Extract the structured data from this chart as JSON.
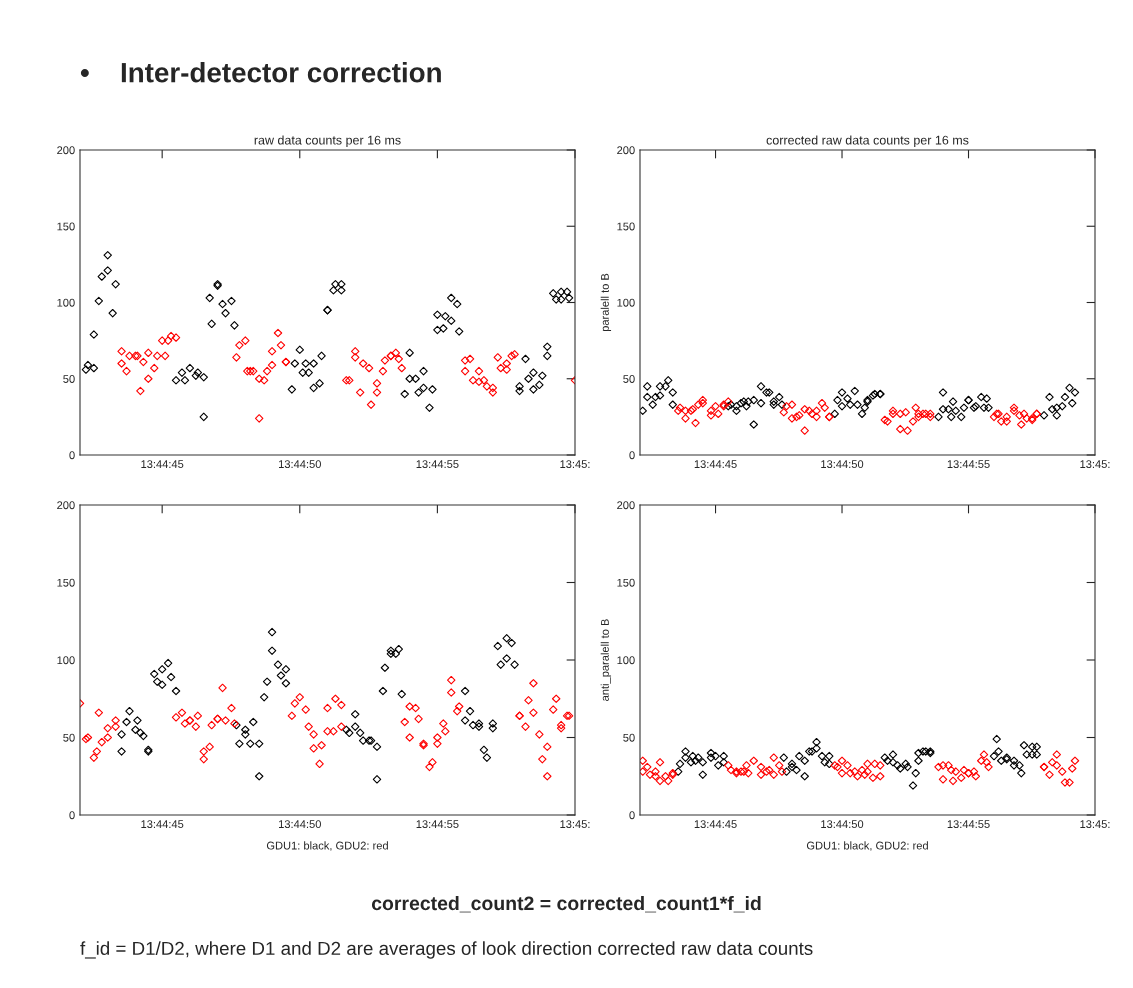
{
  "chart_data": [
    {
      "type": "scatter",
      "title": "raw data counts per 16 ms",
      "annotations": [
        "•",
        "Inter-detector correction"
      ],
      "marker": "diamond",
      "grid": false,
      "legend": false,
      "xlim": [
        13.745,
        13.75
      ],
      "xticks": [
        {
          "value": 13.74583,
          "label": "13:44:45"
        },
        {
          "value": 13.74722,
          "label": "13:44:50"
        },
        {
          "value": 13.74861,
          "label": "13:44:55"
        },
        {
          "value": 13.75,
          "label": "13:45:"
        }
      ],
      "ylim": [
        0,
        200
      ],
      "yticks": [
        0,
        50,
        100,
        150,
        200
      ],
      "series": [
        {
          "color": "#000000",
          "x": [
            13.74506,
            13.74508,
            13.74514,
            13.74514,
            13.74519,
            13.74522,
            13.74528,
            13.74528,
            13.74533,
            13.74536,
            13.74597,
            13.74603,
            13.74606,
            13.74611,
            13.74617,
            13.74619,
            13.74625,
            13.74625,
            13.74631,
            13.74633,
            13.74639,
            13.74639,
            13.74644,
            13.74647,
            13.74653,
            13.74656,
            13.74714,
            13.74717,
            13.74722,
            13.74725,
            13.74728,
            13.74731,
            13.74736,
            13.74736,
            13.74742,
            13.74744,
            13.7475,
            13.7475,
            13.74756,
            13.74758,
            13.74764,
            13.74764,
            13.74828,
            13.74833,
            13.74833,
            13.74839,
            13.74842,
            13.74847,
            13.74847,
            13.74853,
            13.74856,
            13.74861,
            13.74861,
            13.74867,
            13.74869,
            13.74875,
            13.74875,
            13.74881,
            13.74883,
            13.74944,
            13.74944,
            13.7495,
            13.74953,
            13.74958,
            13.74958,
            13.74964,
            13.74967,
            13.74972,
            13.74972,
            13.74978,
            13.74981,
            13.74986,
            13.74986,
            13.74992,
            13.74994
          ],
          "values": [
            56,
            59,
            57,
            79,
            101,
            117,
            121,
            131,
            93,
            112,
            49,
            54,
            49,
            57,
            52,
            54,
            25,
            51,
            103,
            86,
            111,
            112,
            99,
            93,
            101,
            85,
            43,
            60,
            69,
            54,
            60,
            54,
            60,
            44,
            47,
            65,
            95,
            95,
            108,
            112,
            108,
            112,
            40,
            67,
            50,
            50,
            41,
            55,
            44,
            31,
            43,
            82,
            92,
            83,
            91,
            88,
            103,
            99,
            81,
            45,
            42,
            63,
            50,
            54,
            43,
            46,
            52,
            71,
            65,
            106,
            102,
            107,
            102,
            107,
            103
          ]
        },
        {
          "color": "#ff0000",
          "x": [
            13.74542,
            13.74542,
            13.74547,
            13.7455,
            13.74556,
            13.74558,
            13.74561,
            13.74564,
            13.74569,
            13.74569,
            13.74575,
            13.74578,
            13.74583,
            13.74586,
            13.74589,
            13.74592,
            13.74597,
            13.74658,
            13.74661,
            13.74667,
            13.74669,
            13.74672,
            13.74675,
            13.74681,
            13.74681,
            13.74686,
            13.74689,
            13.74694,
            13.74694,
            13.747,
            13.74703,
            13.74708,
            13.74708,
            13.74769,
            13.74772,
            13.74778,
            13.74778,
            13.74783,
            13.74786,
            13.74792,
            13.74794,
            13.748,
            13.748,
            13.74806,
            13.74808,
            13.74814,
            13.74814,
            13.74819,
            13.74822,
            13.74825,
            13.74889,
            13.74889,
            13.74894,
            13.74897,
            13.74903,
            13.74903,
            13.74908,
            13.74911,
            13.74917,
            13.74917,
            13.74922,
            13.74925,
            13.74931,
            13.74931,
            13.74936,
            13.74939,
            13.75
          ],
          "values": [
            60,
            68,
            55,
            65,
            65,
            65,
            42,
            61,
            67,
            50,
            57,
            65,
            75,
            65,
            75,
            78,
            77,
            64,
            72,
            75,
            55,
            55,
            55,
            50,
            24,
            49,
            55,
            68,
            59,
            80,
            72,
            61,
            61,
            49,
            49,
            68,
            64,
            41,
            60,
            57,
            33,
            41,
            47,
            55,
            62,
            65,
            65,
            67,
            63,
            57,
            55,
            62,
            63,
            49,
            55,
            48,
            49,
            45,
            44,
            41,
            64,
            57,
            60,
            56,
            65,
            66,
            49
          ]
        }
      ]
    },
    {
      "type": "scatter",
      "title": "corrected raw data counts per 16 ms",
      "ylabel": "paralell to B",
      "marker": "diamond",
      "grid": false,
      "legend": false,
      "xlim": [
        13.745,
        13.75
      ],
      "xticks": [
        {
          "value": 13.74583,
          "label": "13:44:45"
        },
        {
          "value": 13.74722,
          "label": "13:44:50"
        },
        {
          "value": 13.74861,
          "label": "13:44:55"
        },
        {
          "value": 13.75,
          "label": "13:45:"
        }
      ],
      "ylim": [
        0,
        200
      ],
      "yticks": [
        0,
        50,
        100,
        150,
        200
      ],
      "series": [
        {
          "color": "#000000",
          "x": [
            13.74503,
            13.74508,
            13.74508,
            13.74514,
            13.74517,
            13.74522,
            13.74522,
            13.74528,
            13.74531,
            13.74536,
            13.74536,
            13.74597,
            13.746,
            13.74606,
            13.74606,
            13.74611,
            13.74614,
            13.74617,
            13.74619,
            13.74625,
            13.74625,
            13.74633,
            13.74633,
            13.74639,
            13.74642,
            13.74647,
            13.74647,
            13.74653,
            13.74656,
            13.74714,
            13.74717,
            13.74722,
            13.74722,
            13.74728,
            13.74731,
            13.74736,
            13.74739,
            13.74744,
            13.74747,
            13.7475,
            13.7475,
            13.74756,
            13.74758,
            13.74764,
            13.74764,
            13.74828,
            13.74833,
            13.74833,
            13.74839,
            13.74842,
            13.74844,
            13.74847,
            13.74853,
            13.74856,
            13.74861,
            13.74861,
            13.74867,
            13.74869,
            13.74875,
            13.74878,
            13.74881,
            13.74883,
            13.74944,
            13.7495,
            13.74953,
            13.74958,
            13.74958,
            13.74964,
            13.74967,
            13.74972,
            13.74975,
            13.74978
          ],
          "values": [
            29,
            38,
            45,
            33,
            38,
            39,
            45,
            45,
            49,
            33,
            41,
            32,
            33,
            29,
            32,
            34,
            35,
            32,
            35,
            20,
            36,
            45,
            34,
            41,
            41,
            35,
            33,
            38,
            33,
            27,
            36,
            41,
            32,
            37,
            33,
            42,
            33,
            27,
            31,
            35,
            36,
            39,
            40,
            40,
            40,
            25,
            41,
            30,
            30,
            25,
            35,
            29,
            25,
            31,
            36,
            36,
            31,
            32,
            38,
            31,
            37,
            31,
            26,
            38,
            30,
            31,
            26,
            32,
            38,
            44,
            34,
            41
          ]
        },
        {
          "color": "#ff0000",
          "x": [
            13.74542,
            13.74544,
            13.7455,
            13.7455,
            13.74556,
            13.74558,
            13.74561,
            13.74564,
            13.74569,
            13.74569,
            13.74578,
            13.74578,
            13.74583,
            13.74586,
            13.74592,
            13.74592,
            13.74597,
            13.74658,
            13.74661,
            13.74667,
            13.74667,
            13.74672,
            13.74675,
            13.74681,
            13.74681,
            13.74686,
            13.74689,
            13.74694,
            13.74694,
            13.747,
            13.74703,
            13.74708,
            13.74708,
            13.74769,
            13.74772,
            13.74778,
            13.74778,
            13.74786,
            13.74786,
            13.74792,
            13.74794,
            13.748,
            13.74803,
            13.74806,
            13.74806,
            13.74811,
            13.74814,
            13.74819,
            13.74819,
            13.74889,
            13.74892,
            13.74894,
            13.74897,
            13.74903,
            13.74903,
            13.74911,
            13.74911,
            13.74917,
            13.74919,
            13.74922,
            13.74925,
            13.74931,
            13.74931,
            13.74936,
            13.74936
          ],
          "values": [
            29,
            31,
            24,
            29,
            29,
            30,
            21,
            33,
            36,
            34,
            26,
            29,
            32,
            27,
            32,
            33,
            35,
            28,
            32,
            33,
            24,
            25,
            26,
            30,
            16,
            29,
            27,
            29,
            25,
            34,
            31,
            25,
            25,
            23,
            22,
            29,
            27,
            17,
            27,
            28,
            16,
            22,
            31,
            25,
            27,
            27,
            27,
            27,
            25,
            25,
            27,
            27,
            22,
            25,
            22,
            29,
            31,
            26,
            20,
            27,
            24,
            24,
            23,
            27,
            27
          ]
        }
      ]
    },
    {
      "type": "scatter",
      "xlabel": "GDU1: black, GDU2: red",
      "marker": "diamond",
      "grid": false,
      "legend": false,
      "xlim": [
        13.745,
        13.75
      ],
      "xticks": [
        {
          "value": 13.74583,
          "label": "13:44:45"
        },
        {
          "value": 13.74722,
          "label": "13:44:50"
        },
        {
          "value": 13.74861,
          "label": "13:44:55"
        },
        {
          "value": 13.75,
          "label": "13:45:"
        }
      ],
      "ylim": [
        0,
        200
      ],
      "yticks": [
        0,
        50,
        100,
        150,
        200
      ],
      "series": [
        {
          "color": "#000000",
          "x": [
            13.74542,
            13.74542,
            13.74547,
            13.7455,
            13.74556,
            13.74558,
            13.74561,
            13.74564,
            13.74569,
            13.74569,
            13.74575,
            13.74578,
            13.74583,
            13.74583,
            13.74589,
            13.74592,
            13.74597,
            13.74658,
            13.74661,
            13.74667,
            13.74667,
            13.74672,
            13.74675,
            13.74681,
            13.74681,
            13.74686,
            13.74689,
            13.74694,
            13.74694,
            13.747,
            13.74703,
            13.74708,
            13.74708,
            13.74769,
            13.74772,
            13.74778,
            13.74778,
            13.74783,
            13.74786,
            13.74792,
            13.74794,
            13.748,
            13.748,
            13.74806,
            13.74808,
            13.74814,
            13.74814,
            13.74819,
            13.74822,
            13.74825,
            13.74889,
            13.74889,
            13.74894,
            13.74897,
            13.74903,
            13.74903,
            13.74908,
            13.74911,
            13.74917,
            13.74917,
            13.74922,
            13.74925,
            13.74931,
            13.74931,
            13.74936,
            13.74939
          ],
          "values": [
            41,
            52,
            60,
            67,
            55,
            61,
            53,
            51,
            41,
            42,
            91,
            86,
            94,
            84,
            98,
            89,
            80,
            58,
            46,
            52,
            55,
            46,
            60,
            46,
            25,
            76,
            86,
            106,
            118,
            97,
            90,
            85,
            94,
            55,
            53,
            65,
            57,
            53,
            48,
            48,
            48,
            44,
            23,
            80,
            95,
            104,
            106,
            104,
            107,
            78,
            61,
            80,
            67,
            58,
            59,
            57,
            42,
            37,
            59,
            56,
            109,
            97,
            114,
            101,
            111,
            97
          ]
        },
        {
          "color": "#ff0000",
          "x": [
            13.745,
            13.74506,
            13.74508,
            13.74514,
            13.74517,
            13.74519,
            13.74522,
            13.74528,
            13.74528,
            13.74536,
            13.74536,
            13.74597,
            13.74603,
            13.74606,
            13.74611,
            13.74611,
            13.74617,
            13.74619,
            13.74625,
            13.74625,
            13.74631,
            13.74633,
            13.74639,
            13.74639,
            13.74644,
            13.74647,
            13.74653,
            13.74656,
            13.74714,
            13.74717,
            13.74722,
            13.74728,
            13.74731,
            13.74736,
            13.74736,
            13.74742,
            13.74744,
            13.7475,
            13.7475,
            13.74756,
            13.74758,
            13.74764,
            13.74764,
            13.74828,
            13.74833,
            13.74833,
            13.74839,
            13.74842,
            13.74847,
            13.74847,
            13.74853,
            13.74856,
            13.74861,
            13.74861,
            13.74867,
            13.74869,
            13.74875,
            13.74875,
            13.74881,
            13.74883,
            13.74944,
            13.74944,
            13.7495,
            13.74953,
            13.74958,
            13.74958,
            13.74964,
            13.74967,
            13.74972,
            13.74972,
            13.74978,
            13.74981,
            13.74986,
            13.74986,
            13.74992,
            13.74994
          ],
          "values": [
            72,
            49,
            50,
            37,
            41,
            66,
            47,
            56,
            50,
            61,
            57,
            63,
            66,
            59,
            61,
            61,
            57,
            64,
            36,
            41,
            44,
            58,
            62,
            62,
            82,
            61,
            69,
            59,
            64,
            72,
            76,
            68,
            57,
            52,
            43,
            33,
            45,
            54,
            69,
            54,
            75,
            57,
            71,
            60,
            50,
            70,
            69,
            62,
            45,
            46,
            31,
            34,
            46,
            50,
            59,
            54,
            79,
            87,
            67,
            70,
            64,
            64,
            57,
            74,
            85,
            66,
            52,
            36,
            25,
            44,
            68,
            75,
            58,
            56,
            64,
            64
          ]
        }
      ]
    },
    {
      "type": "scatter",
      "xlabel": "GDU1: black, GDU2: red",
      "ylabel": "anti_paralell to B",
      "annotations": [
        "corrected_count2 = corrected_count1*f_id",
        "f_id = D1/D2, where D1 and D2 are averages of look direction corrected raw data counts"
      ],
      "marker": "diamond",
      "grid": false,
      "legend": false,
      "xlim": [
        13.745,
        13.75
      ],
      "xticks": [
        {
          "value": 13.74583,
          "label": "13:44:45"
        },
        {
          "value": 13.74722,
          "label": "13:44:50"
        },
        {
          "value": 13.74861,
          "label": "13:44:55"
        },
        {
          "value": 13.75,
          "label": "13:45:"
        }
      ],
      "ylim": [
        0,
        200
      ],
      "yticks": [
        0,
        50,
        100,
        150,
        200
      ],
      "series": [
        {
          "color": "#000000",
          "x": [
            13.74542,
            13.74544,
            13.7455,
            13.7455,
            13.74556,
            13.74558,
            13.74561,
            13.74564,
            13.74569,
            13.74569,
            13.74578,
            13.74578,
            13.74583,
            13.74586,
            13.74592,
            13.74592,
            13.74658,
            13.74661,
            13.74667,
            13.74667,
            13.74672,
            13.74675,
            13.74681,
            13.74681,
            13.74686,
            13.74689,
            13.74694,
            13.74694,
            13.747,
            13.74703,
            13.74708,
            13.74708,
            13.74769,
            13.74772,
            13.74778,
            13.74778,
            13.74783,
            13.74786,
            13.74792,
            13.74794,
            13.748,
            13.74803,
            13.74806,
            13.74806,
            13.74811,
            13.74814,
            13.74819,
            13.74819,
            13.74889,
            13.74892,
            13.74894,
            13.74897,
            13.74903,
            13.74903,
            13.74911,
            13.74911,
            13.74917,
            13.74919,
            13.74922,
            13.74925,
            13.74931,
            13.74931,
            13.74936,
            13.74936
          ],
          "values": [
            28,
            33,
            37,
            41,
            34,
            38,
            35,
            37,
            34,
            26,
            40,
            37,
            38,
            32,
            38,
            34,
            37,
            28,
            33,
            31,
            29,
            38,
            35,
            25,
            41,
            41,
            43,
            47,
            38,
            34,
            33,
            38,
            37,
            35,
            39,
            34,
            32,
            30,
            33,
            31,
            19,
            27,
            35,
            40,
            41,
            41,
            40,
            41,
            38,
            49,
            41,
            35,
            37,
            36,
            32,
            35,
            32,
            27,
            45,
            39,
            44,
            39,
            44,
            39
          ]
        },
        {
          "color": "#ff0000",
          "x": [
            13.74503,
            13.74503,
            13.74508,
            13.74511,
            13.74517,
            13.74517,
            13.74522,
            13.74522,
            13.74528,
            13.74531,
            13.74536,
            13.74536,
            13.74597,
            13.746,
            13.74606,
            13.74606,
            13.74611,
            13.74614,
            13.74617,
            13.74619,
            13.74625,
            13.74633,
            13.74633,
            13.74639,
            13.74642,
            13.74647,
            13.74647,
            13.74653,
            13.74656,
            13.74714,
            13.74717,
            13.74722,
            13.74722,
            13.74728,
            13.74731,
            13.74736,
            13.74739,
            13.74744,
            13.74747,
            13.7475,
            13.7475,
            13.74756,
            13.74758,
            13.74764,
            13.74764,
            13.74828,
            13.74833,
            13.74833,
            13.74839,
            13.74842,
            13.74844,
            13.74847,
            13.74853,
            13.74856,
            13.74861,
            13.74861,
            13.74867,
            13.74869,
            13.74875,
            13.74878,
            13.74881,
            13.74883,
            13.74944,
            13.74944,
            13.7495,
            13.74953,
            13.74958,
            13.74958,
            13.74964,
            13.74967,
            13.74972,
            13.74975,
            13.74978
          ],
          "values": [
            35,
            28,
            31,
            26,
            28,
            25,
            34,
            22,
            25,
            22,
            27,
            26,
            32,
            29,
            27,
            28,
            28,
            28,
            32,
            27,
            35,
            26,
            31,
            28,
            29,
            37,
            26,
            32,
            28,
            32,
            31,
            27,
            35,
            32,
            27,
            28,
            25,
            29,
            26,
            28,
            33,
            24,
            33,
            25,
            32,
            31,
            32,
            23,
            32,
            29,
            22,
            28,
            24,
            29,
            27,
            27,
            28,
            25,
            35,
            39,
            34,
            31,
            31,
            31,
            26,
            34,
            39,
            32,
            28,
            21,
            21,
            30,
            35
          ]
        }
      ]
    }
  ]
}
